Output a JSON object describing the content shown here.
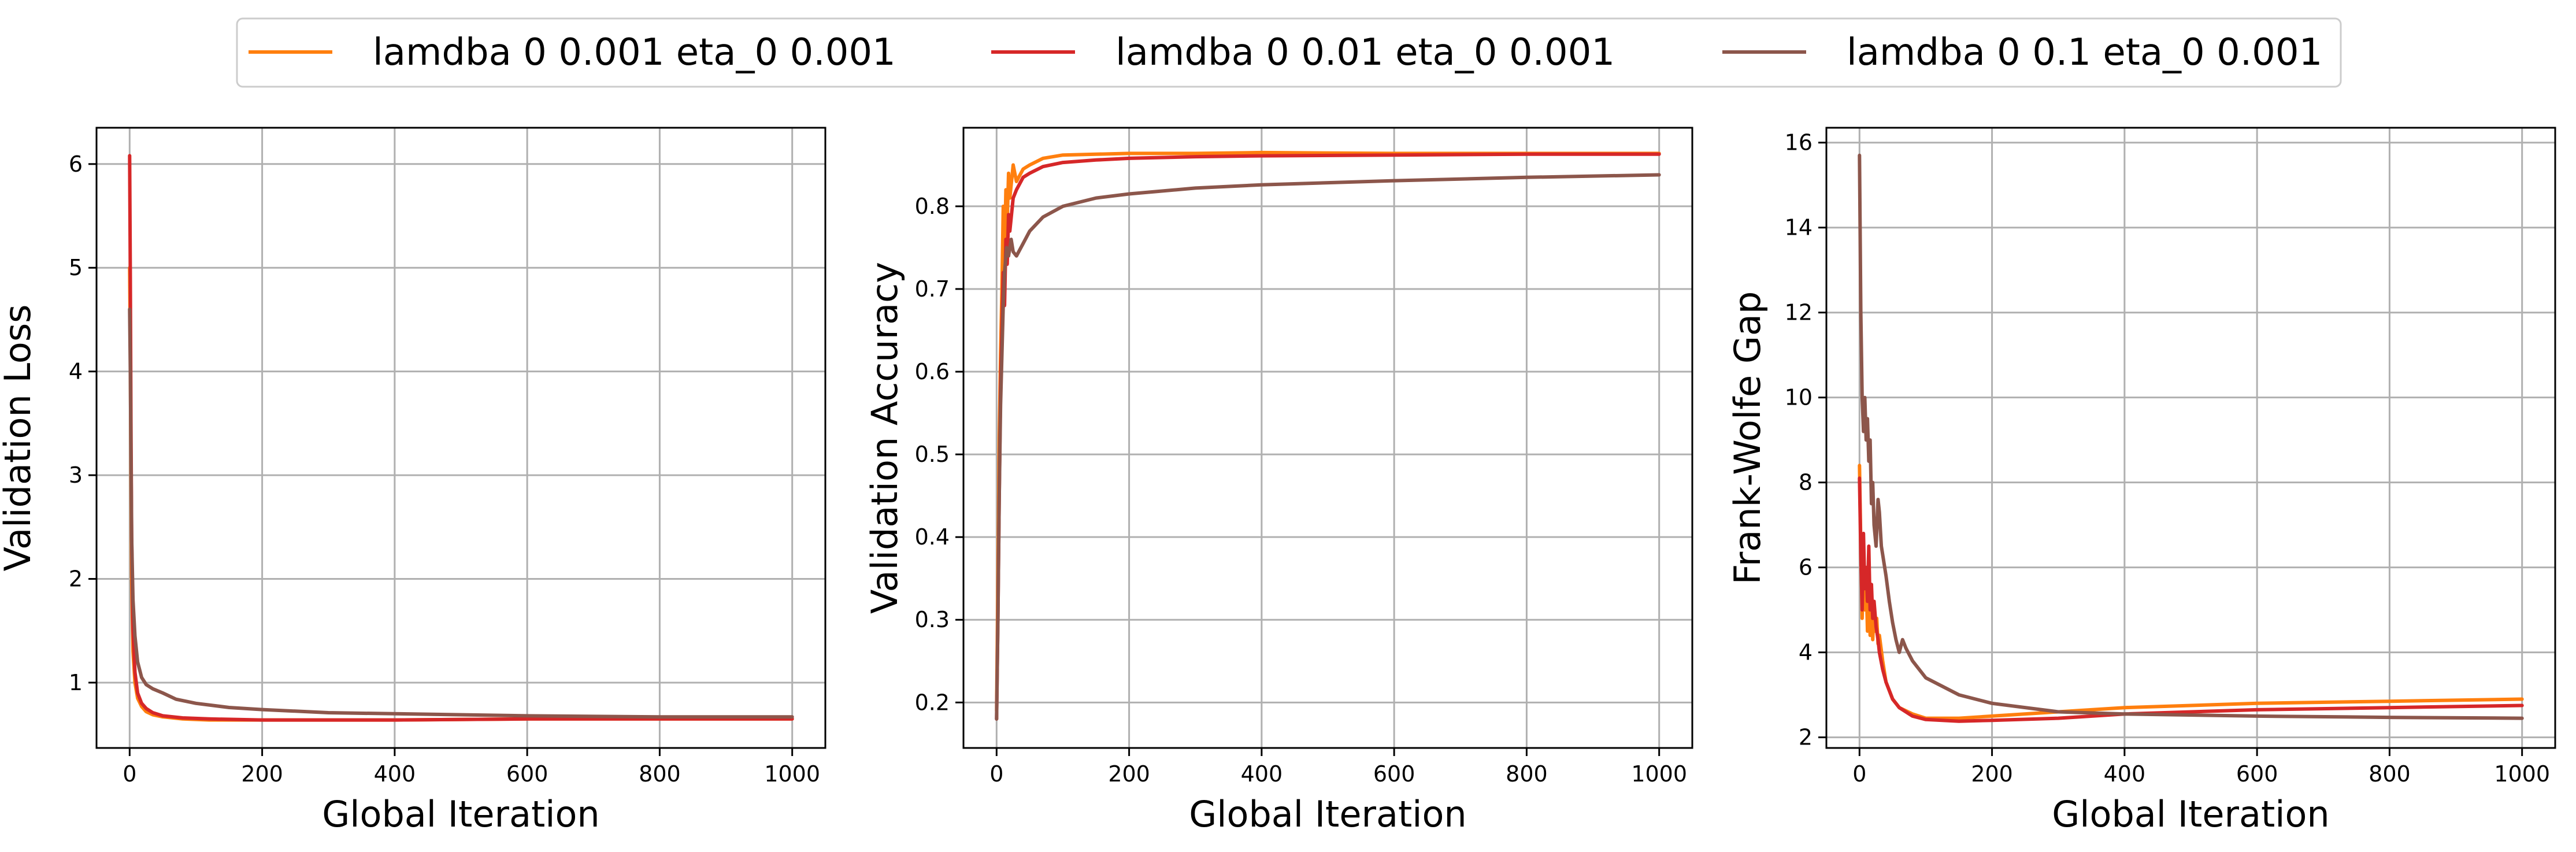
{
  "legend": {
    "placement": "top-center",
    "entries": [
      {
        "label": "lamdba 0 0.001 eta_0 0.001",
        "color": "#ff7f0e"
      },
      {
        "label": "lamdba 0 0.01 eta_0 0.001",
        "color": "#d62728"
      },
      {
        "label": "lamdba 0 0.1 eta_0 0.001",
        "color": "#8c564b"
      }
    ]
  },
  "chart_data": [
    {
      "type": "line",
      "xlabel": "Global Iteration",
      "ylabel": "Validation Loss",
      "xlim": [
        -50,
        1050
      ],
      "ylim": [
        0.37,
        6.35
      ],
      "xticks": [
        0,
        200,
        400,
        600,
        800,
        1000
      ],
      "yticks": [
        1,
        2,
        3,
        4,
        5,
        6
      ],
      "grid": true,
      "series": [
        {
          "color": "#ff7f0e",
          "x": [
            0,
            1,
            2,
            3,
            5,
            8,
            12,
            18,
            25,
            35,
            50,
            80,
            120,
            200,
            300,
            400,
            600,
            800,
            1000
          ],
          "y": [
            5.0,
            4.2,
            3.0,
            2.0,
            1.3,
            1.0,
            0.85,
            0.77,
            0.72,
            0.69,
            0.67,
            0.65,
            0.64,
            0.64,
            0.64,
            0.64,
            0.65,
            0.65,
            0.65
          ]
        },
        {
          "color": "#d62728",
          "x": [
            0,
            1,
            2,
            3,
            5,
            8,
            12,
            18,
            25,
            35,
            50,
            80,
            120,
            200,
            300,
            400,
            600,
            800,
            1000
          ],
          "y": [
            6.08,
            4.9,
            3.5,
            2.4,
            1.5,
            1.1,
            0.9,
            0.8,
            0.75,
            0.71,
            0.68,
            0.66,
            0.65,
            0.64,
            0.64,
            0.64,
            0.65,
            0.65,
            0.65
          ]
        },
        {
          "color": "#8c564b",
          "x": [
            0,
            1,
            2,
            3,
            5,
            8,
            12,
            18,
            25,
            35,
            50,
            70,
            100,
            150,
            200,
            300,
            400,
            600,
            800,
            1000
          ],
          "y": [
            4.6,
            4.0,
            3.2,
            2.4,
            1.8,
            1.45,
            1.2,
            1.05,
            0.98,
            0.94,
            0.9,
            0.84,
            0.8,
            0.76,
            0.74,
            0.71,
            0.7,
            0.68,
            0.67,
            0.67
          ]
        }
      ]
    },
    {
      "type": "line",
      "xlabel": "Global Iteration",
      "ylabel": "Validation Accuracy",
      "xlim": [
        -50,
        1050
      ],
      "ylim": [
        0.145,
        0.895
      ],
      "xticks": [
        0,
        200,
        400,
        600,
        800,
        1000
      ],
      "yticks": [
        0.2,
        0.3,
        0.4,
        0.5,
        0.6,
        0.7,
        0.8
      ],
      "grid": true,
      "series": [
        {
          "color": "#ff7f0e",
          "x": [
            0,
            2,
            4,
            6,
            8,
            10,
            12,
            14,
            16,
            18,
            20,
            25,
            30,
            40,
            50,
            70,
            100,
            150,
            200,
            300,
            400,
            600,
            800,
            1000
          ],
          "y": [
            0.19,
            0.35,
            0.52,
            0.62,
            0.7,
            0.8,
            0.74,
            0.82,
            0.78,
            0.84,
            0.81,
            0.85,
            0.83,
            0.845,
            0.85,
            0.858,
            0.862,
            0.863,
            0.864,
            0.864,
            0.865,
            0.864,
            0.864,
            0.864
          ]
        },
        {
          "color": "#d62728",
          "x": [
            0,
            2,
            4,
            6,
            8,
            10,
            12,
            14,
            16,
            18,
            20,
            25,
            30,
            40,
            50,
            70,
            100,
            150,
            200,
            300,
            400,
            600,
            800,
            1000
          ],
          "y": [
            0.18,
            0.3,
            0.45,
            0.58,
            0.65,
            0.72,
            0.68,
            0.76,
            0.73,
            0.79,
            0.77,
            0.81,
            0.82,
            0.835,
            0.84,
            0.848,
            0.853,
            0.856,
            0.858,
            0.86,
            0.861,
            0.862,
            0.863,
            0.863
          ]
        },
        {
          "color": "#8c564b",
          "x": [
            0,
            2,
            4,
            6,
            8,
            10,
            12,
            15,
            18,
            22,
            25,
            30,
            40,
            50,
            70,
            100,
            150,
            200,
            300,
            400,
            600,
            800,
            1000
          ],
          "y": [
            0.18,
            0.3,
            0.45,
            0.56,
            0.62,
            0.68,
            0.72,
            0.75,
            0.74,
            0.76,
            0.745,
            0.74,
            0.755,
            0.77,
            0.787,
            0.8,
            0.81,
            0.815,
            0.822,
            0.826,
            0.831,
            0.835,
            0.838
          ]
        }
      ]
    },
    {
      "type": "line",
      "xlabel": "Global Iteration",
      "ylabel": "Frank-Wolfe Gap",
      "xlim": [
        -50,
        1050
      ],
      "ylim": [
        1.75,
        16.35
      ],
      "xticks": [
        0,
        200,
        400,
        600,
        800,
        1000
      ],
      "yticks": [
        2,
        4,
        6,
        8,
        10,
        12,
        14,
        16
      ],
      "grid": true,
      "series": [
        {
          "color": "#ff7f0e",
          "x": [
            0,
            2,
            4,
            6,
            8,
            10,
            12,
            14,
            16,
            18,
            20,
            22,
            24,
            26,
            28,
            30,
            35,
            40,
            50,
            60,
            80,
            100,
            150,
            200,
            300,
            400,
            600,
            800,
            1000
          ],
          "y": [
            8.4,
            6.5,
            4.8,
            6.2,
            5.0,
            5.8,
            4.5,
            5.5,
            4.4,
            5.2,
            4.3,
            5.0,
            4.5,
            4.8,
            4.2,
            4.4,
            3.8,
            3.3,
            2.9,
            2.7,
            2.55,
            2.45,
            2.45,
            2.5,
            2.6,
            2.7,
            2.8,
            2.85,
            2.9
          ]
        },
        {
          "color": "#d62728",
          "x": [
            0,
            2,
            4,
            6,
            8,
            10,
            12,
            14,
            16,
            18,
            20,
            22,
            25,
            28,
            30,
            35,
            40,
            50,
            60,
            80,
            100,
            150,
            200,
            300,
            400,
            600,
            800,
            1000
          ],
          "y": [
            8.1,
            6.3,
            5.0,
            6.8,
            5.5,
            6.0,
            5.2,
            6.5,
            5.0,
            5.6,
            4.8,
            5.2,
            4.6,
            4.3,
            4.0,
            3.6,
            3.3,
            2.9,
            2.7,
            2.5,
            2.42,
            2.38,
            2.4,
            2.45,
            2.55,
            2.65,
            2.7,
            2.75
          ]
        },
        {
          "color": "#8c564b",
          "x": [
            0,
            2,
            4,
            6,
            8,
            10,
            12,
            14,
            16,
            18,
            20,
            22,
            25,
            28,
            30,
            33,
            36,
            40,
            45,
            50,
            55,
            60,
            65,
            70,
            80,
            100,
            150,
            200,
            300,
            400,
            600,
            800,
            1000
          ],
          "y": [
            15.7,
            12.0,
            10.0,
            9.2,
            10.0,
            9.0,
            9.5,
            8.5,
            9.0,
            7.5,
            8.0,
            7.0,
            6.5,
            7.6,
            7.3,
            6.5,
            6.2,
            5.8,
            5.2,
            4.7,
            4.3,
            4.0,
            4.3,
            4.1,
            3.8,
            3.4,
            3.0,
            2.8,
            2.6,
            2.55,
            2.5,
            2.47,
            2.45
          ]
        }
      ]
    }
  ]
}
